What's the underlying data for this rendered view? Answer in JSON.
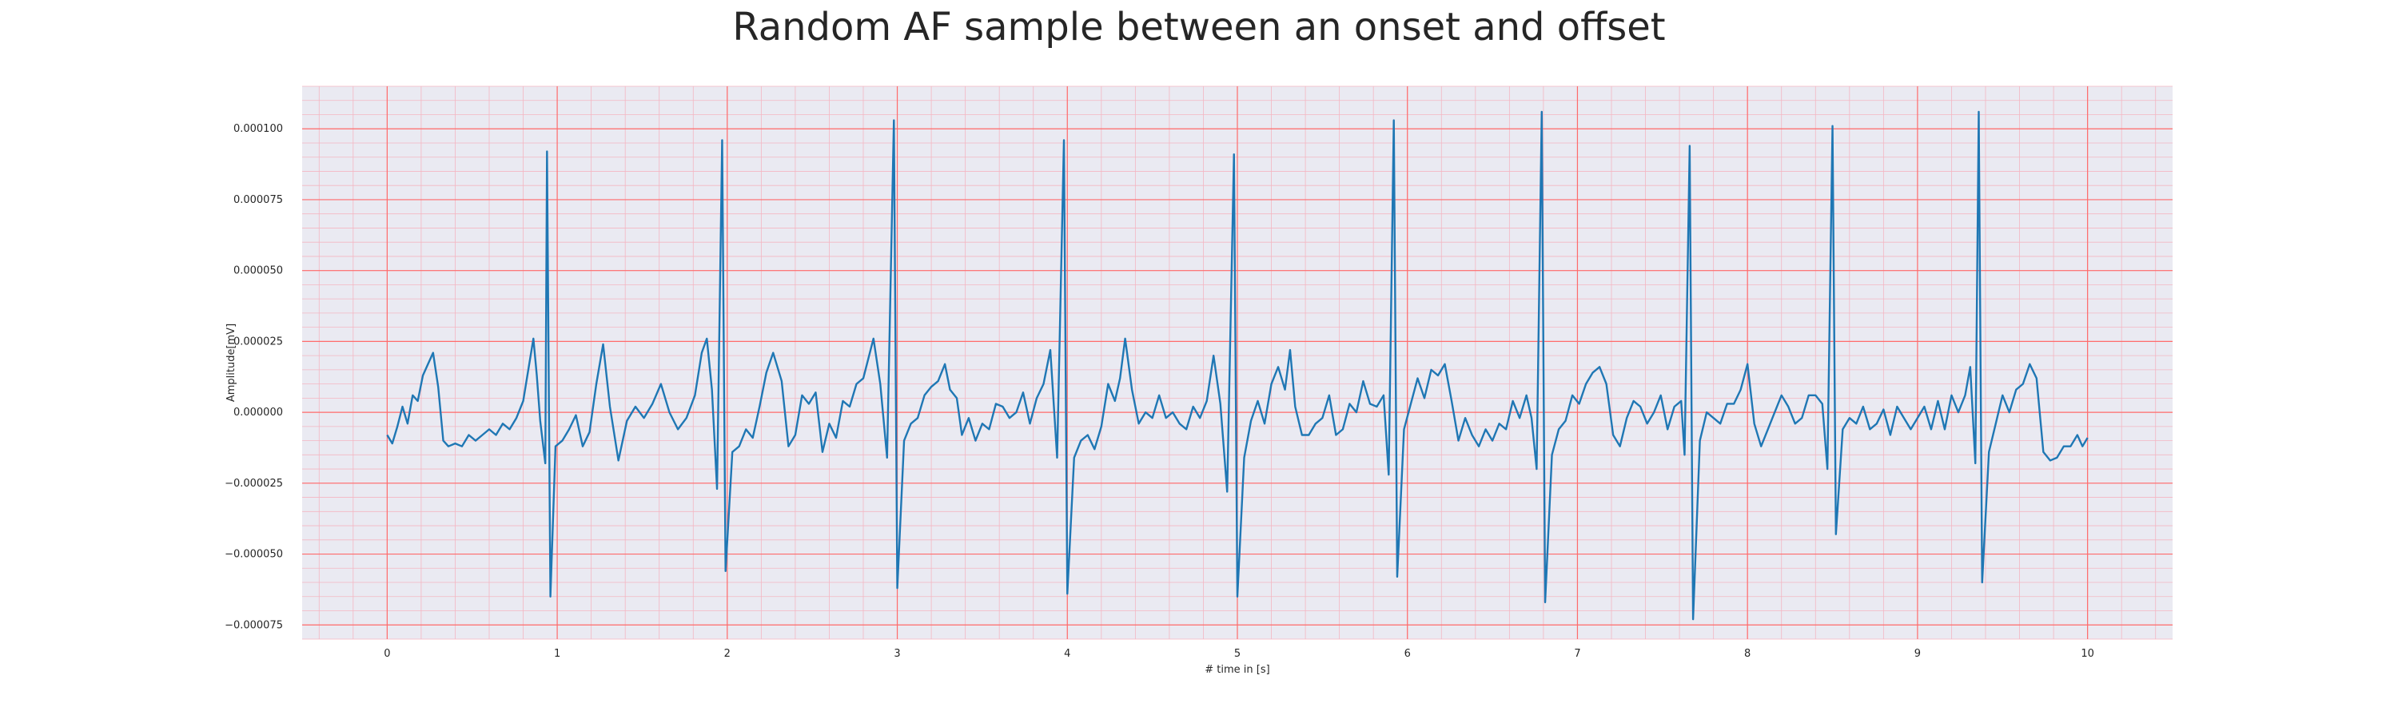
{
  "chart_data": {
    "type": "line",
    "title": "Random AF sample between an onset and offset",
    "xlabel": "# time in [s]",
    "ylabel": "Amplitude[mV]",
    "xlim": [
      -0.5,
      10.5
    ],
    "ylim": [
      -8e-05,
      0.000115
    ],
    "x_ticks": [
      0,
      1,
      2,
      3,
      4,
      5,
      6,
      7,
      8,
      9,
      10
    ],
    "x_tick_labels": [
      "0",
      "1",
      "2",
      "3",
      "4",
      "5",
      "6",
      "7",
      "8",
      "9",
      "10"
    ],
    "y_ticks": [
      -7.5e-05,
      -5e-05,
      -2.5e-05,
      0,
      2.5e-05,
      5e-05,
      7.5e-05,
      0.0001
    ],
    "y_tick_labels": [
      "−0.000075",
      "−0.000050",
      "−0.000025",
      "0.000000",
      "0.000025",
      "0.000050",
      "0.000075",
      "0.000100"
    ],
    "grid": true,
    "colors": {
      "line": "#1f77b4",
      "plot_background": "#eaeaf2",
      "major_grid": "#ff6b6b",
      "minor_grid": "#f4b6c2"
    },
    "series": [
      {
        "beats": [
          {
            "t": 0.94,
            "q": -1.8e-05,
            "r": 9.2e-05,
            "s": -6.5e-05
          },
          {
            "t": 1.97,
            "q": -2.7e-05,
            "r": 9.6e-05,
            "s": -5.6e-05
          },
          {
            "t": 2.98,
            "q": -1.6e-05,
            "r": 0.000103,
            "s": -6.2e-05
          },
          {
            "t": 3.98,
            "q": -1.6e-05,
            "r": 9.6e-05,
            "s": -6.4e-05
          },
          {
            "t": 4.98,
            "q": -2.8e-05,
            "r": 9.1e-05,
            "s": -6.5e-05
          },
          {
            "t": 5.92,
            "q": -2.2e-05,
            "r": 0.000103,
            "s": -5.8e-05
          },
          {
            "t": 6.79,
            "q": -2e-05,
            "r": 0.000106,
            "s": -6.7e-05
          },
          {
            "t": 7.66,
            "q": -1.5e-05,
            "r": 9.4e-05,
            "s": -7.3e-05
          },
          {
            "t": 8.5,
            "q": -2e-05,
            "r": 0.000101,
            "s": -4.3e-05
          },
          {
            "t": 9.36,
            "q": -1.8e-05,
            "r": 0.000106,
            "s": -6e-05
          }
        ],
        "points": [
          [
            0.0,
            -8e-06
          ],
          [
            0.03,
            -1.1e-05
          ],
          [
            0.06,
            -5e-06
          ],
          [
            0.09,
            2e-06
          ],
          [
            0.12,
            -4e-06
          ],
          [
            0.15,
            6e-06
          ],
          [
            0.18,
            4e-06
          ],
          [
            0.21,
            1.3e-05
          ],
          [
            0.24,
            1.7e-05
          ],
          [
            0.27,
            2.1e-05
          ],
          [
            0.3,
            9e-06
          ],
          [
            0.33,
            -1e-05
          ],
          [
            0.36,
            -1.2e-05
          ],
          [
            0.4,
            -1.1e-05
          ],
          [
            0.44,
            -1.2e-05
          ],
          [
            0.48,
            -8e-06
          ],
          [
            0.52,
            -1e-05
          ],
          [
            0.56,
            -8e-06
          ],
          [
            0.6,
            -6e-06
          ],
          [
            0.64,
            -8e-06
          ],
          [
            0.68,
            -4e-06
          ],
          [
            0.72,
            -6e-06
          ],
          [
            0.76,
            -2e-06
          ],
          [
            0.8,
            4e-06
          ],
          [
            0.83,
            1.5e-05
          ],
          [
            0.86,
            2.6e-05
          ],
          [
            0.88,
            1.3e-05
          ],
          [
            0.9,
            -3e-06
          ],
          [
            0.93,
            -1.8e-05
          ],
          [
            0.94,
            9.2e-05
          ],
          [
            0.96,
            -6.5e-05
          ],
          [
            0.99,
            -1.2e-05
          ],
          [
            1.03,
            -1e-05
          ],
          [
            1.07,
            -6e-06
          ],
          [
            1.11,
            -1e-06
          ],
          [
            1.15,
            -1.2e-05
          ],
          [
            1.19,
            -7e-06
          ],
          [
            1.23,
            1e-05
          ],
          [
            1.27,
            2.4e-05
          ],
          [
            1.31,
            2e-06
          ],
          [
            1.36,
            -1.7e-05
          ],
          [
            1.41,
            -3e-06
          ],
          [
            1.46,
            2e-06
          ],
          [
            1.51,
            -2e-06
          ],
          [
            1.56,
            3e-06
          ],
          [
            1.61,
            1e-05
          ],
          [
            1.66,
            0.0
          ],
          [
            1.71,
            -6e-06
          ],
          [
            1.76,
            -2e-06
          ],
          [
            1.81,
            6e-06
          ],
          [
            1.85,
            2.1e-05
          ],
          [
            1.88,
            2.6e-05
          ],
          [
            1.91,
            8e-06
          ],
          [
            1.94,
            -2.7e-05
          ],
          [
            1.97,
            9.6e-05
          ],
          [
            1.99,
            -5.6e-05
          ],
          [
            2.03,
            -1.4e-05
          ],
          [
            2.07,
            -1.2e-05
          ],
          [
            2.11,
            -6e-06
          ],
          [
            2.15,
            -9e-06
          ],
          [
            2.19,
            2e-06
          ],
          [
            2.23,
            1.4e-05
          ],
          [
            2.27,
            2.1e-05
          ],
          [
            2.32,
            1.1e-05
          ],
          [
            2.36,
            -1.2e-05
          ],
          [
            2.4,
            -8e-06
          ],
          [
            2.44,
            6e-06
          ],
          [
            2.48,
            3e-06
          ],
          [
            2.52,
            7e-06
          ],
          [
            2.56,
            -1.4e-05
          ],
          [
            2.6,
            -4e-06
          ],
          [
            2.64,
            -9e-06
          ],
          [
            2.68,
            4e-06
          ],
          [
            2.72,
            2e-06
          ],
          [
            2.76,
            1e-05
          ],
          [
            2.8,
            1.2e-05
          ],
          [
            2.86,
            2.6e-05
          ],
          [
            2.9,
            1e-05
          ],
          [
            2.94,
            -1.6e-05
          ],
          [
            2.98,
            0.000103
          ],
          [
            3.0,
            -6.2e-05
          ],
          [
            3.04,
            -1e-05
          ],
          [
            3.08,
            -4e-06
          ],
          [
            3.12,
            -2e-06
          ],
          [
            3.16,
            6e-06
          ],
          [
            3.2,
            9e-06
          ],
          [
            3.24,
            1.1e-05
          ],
          [
            3.28,
            1.7e-05
          ],
          [
            3.31,
            8e-06
          ],
          [
            3.35,
            5e-06
          ],
          [
            3.38,
            -8e-06
          ],
          [
            3.42,
            -2e-06
          ],
          [
            3.46,
            -1e-05
          ],
          [
            3.5,
            -4e-06
          ],
          [
            3.54,
            -6e-06
          ],
          [
            3.58,
            3e-06
          ],
          [
            3.62,
            2e-06
          ],
          [
            3.66,
            -2e-06
          ],
          [
            3.7,
            0.0
          ],
          [
            3.74,
            7e-06
          ],
          [
            3.78,
            -4e-06
          ],
          [
            3.82,
            5e-06
          ],
          [
            3.86,
            1e-05
          ],
          [
            3.9,
            2.2e-05
          ],
          [
            3.94,
            -1.6e-05
          ],
          [
            3.98,
            9.6e-05
          ],
          [
            4.0,
            -6.4e-05
          ],
          [
            4.04,
            -1.6e-05
          ],
          [
            4.08,
            -1e-05
          ],
          [
            4.12,
            -8e-06
          ],
          [
            4.16,
            -1.3e-05
          ],
          [
            4.2,
            -5e-06
          ],
          [
            4.24,
            1e-05
          ],
          [
            4.28,
            4e-06
          ],
          [
            4.31,
            1.2e-05
          ],
          [
            4.34,
            2.6e-05
          ],
          [
            4.38,
            8e-06
          ],
          [
            4.42,
            -4e-06
          ],
          [
            4.46,
            0.0
          ],
          [
            4.5,
            -2e-06
          ],
          [
            4.54,
            6e-06
          ],
          [
            4.58,
            -2e-06
          ],
          [
            4.62,
            0.0
          ],
          [
            4.66,
            -4e-06
          ],
          [
            4.7,
            -6e-06
          ],
          [
            4.74,
            2e-06
          ],
          [
            4.78,
            -2e-06
          ],
          [
            4.82,
            4e-06
          ],
          [
            4.86,
            2e-05
          ],
          [
            4.9,
            3e-06
          ],
          [
            4.94,
            -2.8e-05
          ],
          [
            4.98,
            9.1e-05
          ],
          [
            5.0,
            -6.5e-05
          ],
          [
            5.04,
            -1.6e-05
          ],
          [
            5.08,
            -3e-06
          ],
          [
            5.12,
            4e-06
          ],
          [
            5.16,
            -4e-06
          ],
          [
            5.2,
            1e-05
          ],
          [
            5.24,
            1.6e-05
          ],
          [
            5.28,
            8e-06
          ],
          [
            5.31,
            2.2e-05
          ],
          [
            5.34,
            2e-06
          ],
          [
            5.38,
            -8e-06
          ],
          [
            5.42,
            -8e-06
          ],
          [
            5.46,
            -4e-06
          ],
          [
            5.5,
            -2e-06
          ],
          [
            5.54,
            6e-06
          ],
          [
            5.58,
            -8e-06
          ],
          [
            5.62,
            -6e-06
          ],
          [
            5.66,
            3e-06
          ],
          [
            5.7,
            0.0
          ],
          [
            5.74,
            1.1e-05
          ],
          [
            5.78,
            3e-06
          ],
          [
            5.82,
            2e-06
          ],
          [
            5.86,
            6e-06
          ],
          [
            5.89,
            -2.2e-05
          ],
          [
            5.92,
            0.000103
          ],
          [
            5.94,
            -5.8e-05
          ],
          [
            5.98,
            -6e-06
          ],
          [
            6.02,
            3e-06
          ],
          [
            6.06,
            1.2e-05
          ],
          [
            6.1,
            5e-06
          ],
          [
            6.14,
            1.5e-05
          ],
          [
            6.18,
            1.3e-05
          ],
          [
            6.22,
            1.7e-05
          ],
          [
            6.26,
            4e-06
          ],
          [
            6.3,
            -1e-05
          ],
          [
            6.34,
            -2e-06
          ],
          [
            6.38,
            -8e-06
          ],
          [
            6.42,
            -1.2e-05
          ],
          [
            6.46,
            -6e-06
          ],
          [
            6.5,
            -1e-05
          ],
          [
            6.54,
            -4e-06
          ],
          [
            6.58,
            -6e-06
          ],
          [
            6.62,
            4e-06
          ],
          [
            6.66,
            -2e-06
          ],
          [
            6.7,
            6e-06
          ],
          [
            6.73,
            -2e-06
          ],
          [
            6.76,
            -2e-05
          ],
          [
            6.79,
            0.000106
          ],
          [
            6.81,
            -6.7e-05
          ],
          [
            6.85,
            -1.5e-05
          ],
          [
            6.89,
            -6e-06
          ],
          [
            6.93,
            -3e-06
          ],
          [
            6.97,
            6e-06
          ],
          [
            7.01,
            3e-06
          ],
          [
            7.05,
            1e-05
          ],
          [
            7.09,
            1.4e-05
          ],
          [
            7.13,
            1.6e-05
          ],
          [
            7.17,
            1e-05
          ],
          [
            7.21,
            -8e-06
          ],
          [
            7.25,
            -1.2e-05
          ],
          [
            7.29,
            -2e-06
          ],
          [
            7.33,
            4e-06
          ],
          [
            7.37,
            2e-06
          ],
          [
            7.41,
            -4e-06
          ],
          [
            7.45,
            0.0
          ],
          [
            7.49,
            6e-06
          ],
          [
            7.53,
            -6e-06
          ],
          [
            7.57,
            2e-06
          ],
          [
            7.61,
            4e-06
          ],
          [
            7.63,
            -1.5e-05
          ],
          [
            7.66,
            9.4e-05
          ],
          [
            7.68,
            -7.3e-05
          ],
          [
            7.72,
            -1e-05
          ],
          [
            7.76,
            0.0
          ],
          [
            7.8,
            -2e-06
          ],
          [
            7.84,
            -4e-06
          ],
          [
            7.88,
            3e-06
          ],
          [
            7.92,
            3e-06
          ],
          [
            7.96,
            8e-06
          ],
          [
            8.0,
            1.7e-05
          ],
          [
            8.04,
            -4e-06
          ],
          [
            8.08,
            -1.2e-05
          ],
          [
            8.12,
            -6e-06
          ],
          [
            8.16,
            0.0
          ],
          [
            8.2,
            6e-06
          ],
          [
            8.24,
            2e-06
          ],
          [
            8.28,
            -4e-06
          ],
          [
            8.32,
            -2e-06
          ],
          [
            8.36,
            6e-06
          ],
          [
            8.4,
            6e-06
          ],
          [
            8.44,
            3e-06
          ],
          [
            8.47,
            -2e-05
          ],
          [
            8.5,
            0.000101
          ],
          [
            8.52,
            -4.3e-05
          ],
          [
            8.56,
            -6e-06
          ],
          [
            8.6,
            -2e-06
          ],
          [
            8.64,
            -4e-06
          ],
          [
            8.68,
            2e-06
          ],
          [
            8.72,
            -6e-06
          ],
          [
            8.76,
            -4e-06
          ],
          [
            8.8,
            1e-06
          ],
          [
            8.84,
            -8e-06
          ],
          [
            8.88,
            2e-06
          ],
          [
            8.92,
            -2e-06
          ],
          [
            8.96,
            -6e-06
          ],
          [
            9.0,
            -2e-06
          ],
          [
            9.04,
            2e-06
          ],
          [
            9.08,
            -6e-06
          ],
          [
            9.12,
            4e-06
          ],
          [
            9.16,
            -6e-06
          ],
          [
            9.2,
            6e-06
          ],
          [
            9.24,
            0.0
          ],
          [
            9.28,
            6e-06
          ],
          [
            9.31,
            1.6e-05
          ],
          [
            9.34,
            -1.8e-05
          ],
          [
            9.36,
            0.000106
          ],
          [
            9.38,
            -6e-05
          ],
          [
            9.42,
            -1.4e-05
          ],
          [
            9.46,
            -4e-06
          ],
          [
            9.5,
            6e-06
          ],
          [
            9.54,
            0.0
          ],
          [
            9.58,
            8e-06
          ],
          [
            9.62,
            1e-05
          ],
          [
            9.66,
            1.7e-05
          ],
          [
            9.7,
            1.2e-05
          ],
          [
            9.74,
            -1.4e-05
          ],
          [
            9.78,
            -1.7e-05
          ],
          [
            9.82,
            -1.6e-05
          ],
          [
            9.86,
            -1.2e-05
          ],
          [
            9.9,
            -1.2e-05
          ],
          [
            9.94,
            -8e-06
          ],
          [
            9.97,
            -1.2e-05
          ],
          [
            10.0,
            -9e-06
          ]
        ]
      }
    ]
  }
}
